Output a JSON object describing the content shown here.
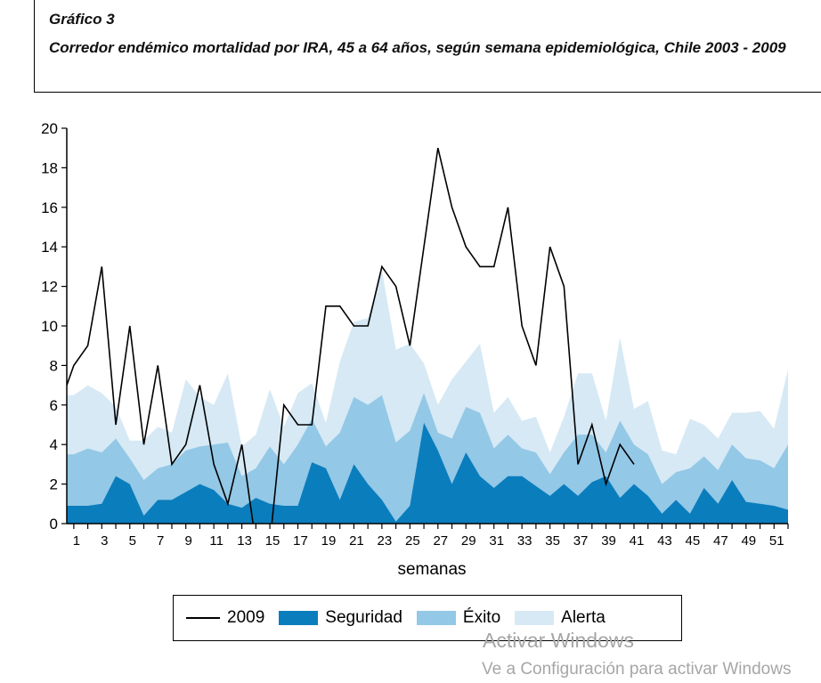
{
  "figure": {
    "number": "Gráfico 3",
    "title": "Corredor endémico mortalidad por IRA, 45 a 64 años, según semana epidemiológica, Chile 2003 - 2009"
  },
  "chart_data": {
    "type": "area",
    "xlabel": "semanas",
    "ylabel": "",
    "ylim": [
      0,
      20
    ],
    "xlim": [
      0.5,
      52
    ],
    "y_ticks": [
      0,
      2,
      4,
      6,
      8,
      10,
      12,
      14,
      16,
      18,
      20
    ],
    "x_ticks": [
      1,
      3,
      5,
      7,
      9,
      11,
      13,
      15,
      17,
      19,
      21,
      23,
      25,
      27,
      29,
      31,
      33,
      35,
      37,
      39,
      41,
      43,
      45,
      47,
      49,
      51
    ],
    "x": [
      0.5,
      1,
      2,
      3,
      4,
      5,
      6,
      7,
      8,
      9,
      10,
      11,
      12,
      13,
      14,
      15,
      16,
      17,
      18,
      19,
      20,
      21,
      22,
      23,
      24,
      25,
      26,
      27,
      28,
      29,
      30,
      31,
      32,
      33,
      34,
      35,
      36,
      37,
      38,
      39,
      40,
      41,
      42,
      43,
      44,
      45,
      46,
      47,
      48,
      49,
      50,
      51,
      52
    ],
    "grid": false,
    "legend_position": "bottom",
    "series": [
      {
        "name": "Seguridad",
        "kind": "area",
        "color": "#0a7dbd",
        "values": [
          0.9,
          0.9,
          0.9,
          1.0,
          2.4,
          2.0,
          0.4,
          1.2,
          1.2,
          1.6,
          2.0,
          1.7,
          1.0,
          0.8,
          1.3,
          1.0,
          0.9,
          0.9,
          3.1,
          2.8,
          1.2,
          3.0,
          2.0,
          1.2,
          0.1,
          0.9,
          5.1,
          3.7,
          2.0,
          3.6,
          2.4,
          1.8,
          2.4,
          2.4,
          1.9,
          1.4,
          2.0,
          1.4,
          2.1,
          2.4,
          1.3,
          2.0,
          1.4,
          0.5,
          1.2,
          0.5,
          1.8,
          1.0,
          2.2,
          1.1,
          1.0,
          0.9,
          0.7
        ]
      },
      {
        "name": "Éxito",
        "kind": "area",
        "color": "#93c8e6",
        "values": [
          3.5,
          3.5,
          3.8,
          3.6,
          4.3,
          3.3,
          2.2,
          2.8,
          3.0,
          3.7,
          3.9,
          4.0,
          4.1,
          2.4,
          2.8,
          3.9,
          3.0,
          4.0,
          5.3,
          3.9,
          4.6,
          6.4,
          6.0,
          6.5,
          4.1,
          4.7,
          6.6,
          4.6,
          4.3,
          5.9,
          5.6,
          3.8,
          4.5,
          3.8,
          3.6,
          2.5,
          3.6,
          4.5,
          4.5,
          3.6,
          5.2,
          4.0,
          3.5,
          2.0,
          2.6,
          2.8,
          3.4,
          2.7,
          4.0,
          3.3,
          3.2,
          2.8,
          4.0
        ]
      },
      {
        "name": "Alerta",
        "kind": "area",
        "color": "#d6e9f5",
        "values": [
          6.5,
          6.5,
          7.0,
          6.6,
          5.9,
          4.2,
          4.2,
          4.9,
          4.6,
          7.3,
          6.4,
          6.0,
          7.6,
          3.9,
          4.5,
          6.8,
          4.9,
          6.6,
          7.1,
          5.1,
          8.2,
          10.2,
          10.4,
          12.8,
          8.8,
          9.1,
          8.1,
          6.0,
          7.3,
          8.2,
          9.1,
          5.6,
          6.4,
          5.2,
          5.4,
          3.6,
          5.4,
          7.6,
          7.6,
          5.2,
          9.4,
          5.8,
          6.2,
          3.7,
          3.5,
          5.3,
          5.0,
          4.3,
          5.6,
          5.6,
          5.7,
          4.8,
          7.8
        ]
      },
      {
        "name": "2009",
        "kind": "line",
        "color": "#000000",
        "x": [
          0.5,
          1,
          2,
          3,
          4,
          5,
          6,
          7,
          8,
          9,
          10,
          11,
          12,
          13,
          14,
          15,
          16,
          17,
          18,
          19,
          20,
          21,
          22,
          23,
          24,
          25,
          26,
          27,
          28,
          29,
          30,
          31,
          32,
          33,
          34,
          35,
          36,
          37,
          38,
          39,
          40,
          41
        ],
        "values": [
          7,
          8,
          9,
          13,
          5,
          10,
          4,
          8,
          3,
          4,
          7,
          3,
          1,
          4,
          -1,
          -1,
          6,
          5,
          5,
          11,
          11,
          10,
          10,
          13,
          12,
          9,
          14,
          19,
          16,
          14,
          13,
          13,
          16,
          10,
          8,
          14,
          12,
          3,
          5,
          2,
          4,
          3
        ]
      }
    ]
  },
  "legend": {
    "items": [
      {
        "label": "2009",
        "kind": "line",
        "color": "#000000"
      },
      {
        "label": "Seguridad",
        "kind": "swatch",
        "color": "#0a7dbd"
      },
      {
        "label": "Éxito",
        "kind": "swatch",
        "color": "#93c8e6"
      },
      {
        "label": "Alerta",
        "kind": "swatch",
        "color": "#d6e9f5"
      }
    ]
  },
  "watermark": {
    "title": "Activar Windows",
    "subtitle": "Ve a Configuración para activar Windows"
  }
}
